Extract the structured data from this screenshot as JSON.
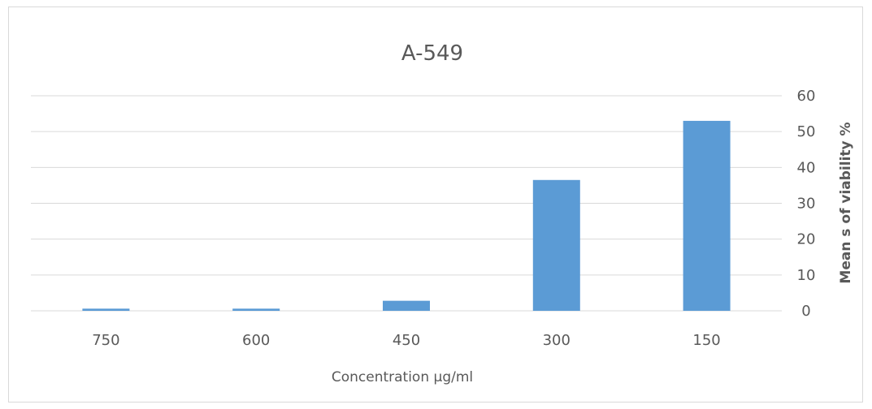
{
  "chart_data": {
    "type": "bar",
    "title": "A-549",
    "xlabel": "Concentration µg/ml",
    "ylabel": "Mean s of viability %",
    "categories": [
      "750",
      "600",
      "450",
      "300",
      "150"
    ],
    "values": [
      0.6,
      0.6,
      2.8,
      36.5,
      53
    ],
    "ylim": [
      0,
      60
    ],
    "yticks": [
      0,
      10,
      20,
      30,
      40,
      50,
      60
    ],
    "y_axis_position": "right",
    "grid": true,
    "legend": "none",
    "bar_color": "#5b9bd5",
    "gridline_color": "#d9d9d9"
  }
}
